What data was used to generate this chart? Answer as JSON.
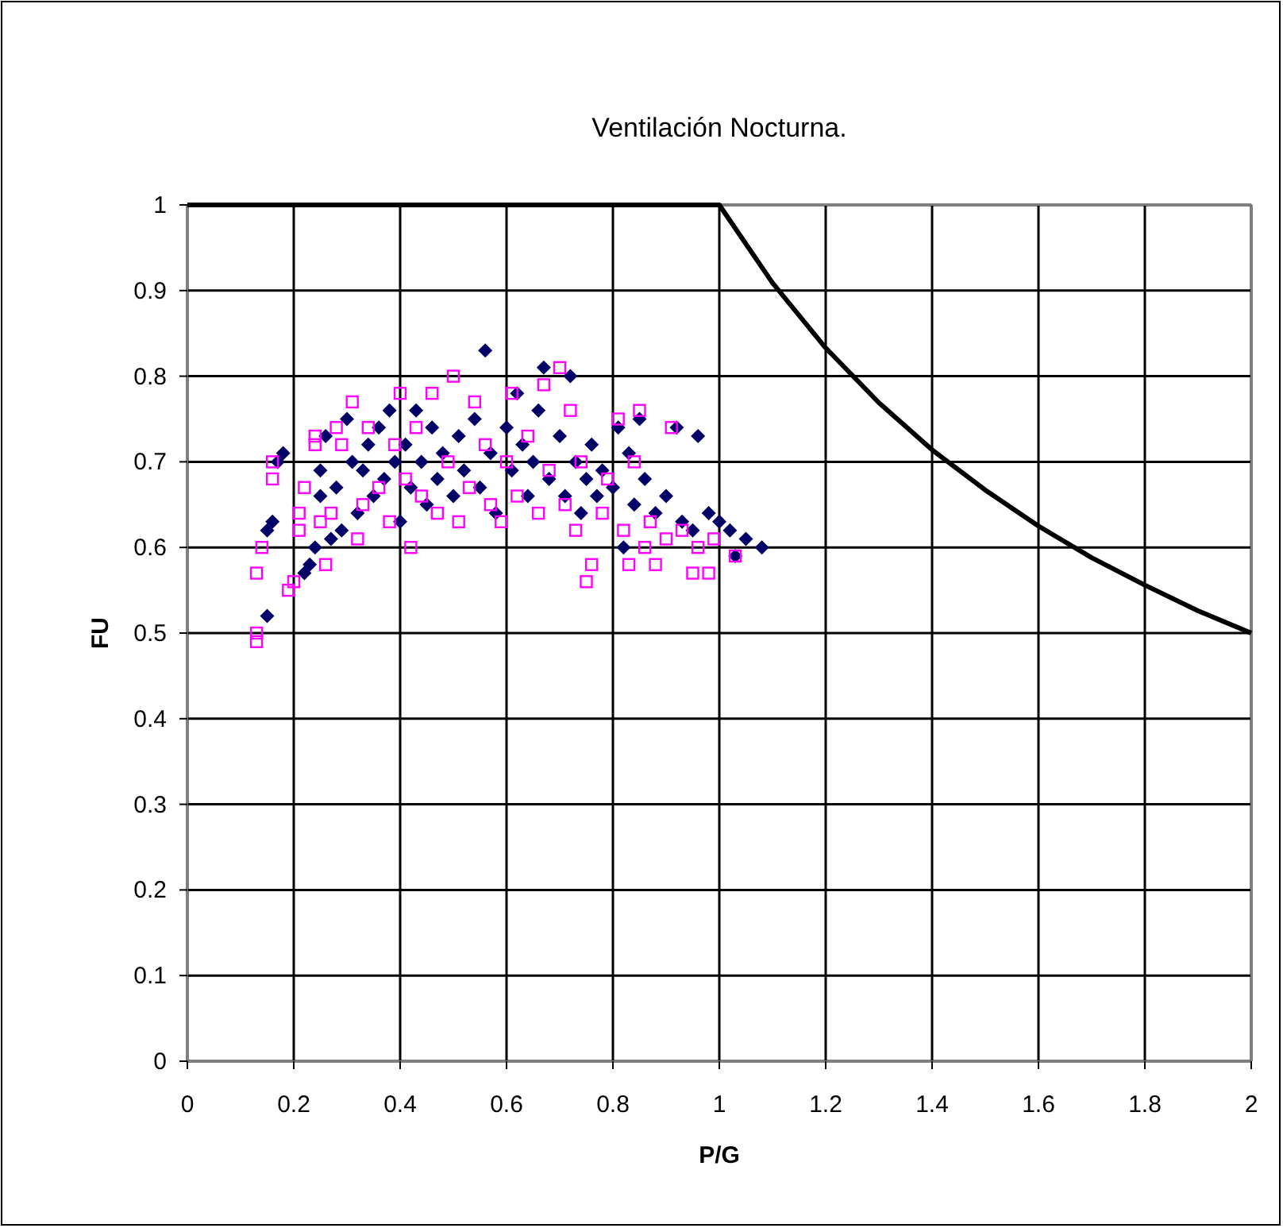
{
  "chart_data": {
    "type": "scatter",
    "title": "Ventilación Nocturna.",
    "xlabel": "P/G",
    "ylabel": "FU",
    "xlim": [
      0,
      2
    ],
    "ylim": [
      0,
      1
    ],
    "xticks": [
      0,
      0.2,
      0.4,
      0.6,
      0.8,
      1,
      1.2,
      1.4,
      1.6,
      1.8,
      2
    ],
    "yticks": [
      0,
      0.1,
      0.2,
      0.3,
      0.4,
      0.5,
      0.6,
      0.7,
      0.8,
      0.9,
      1
    ],
    "grid": true,
    "series": [
      {
        "marker": "diamond",
        "color": "#000066",
        "x": [
          0.15,
          0.15,
          0.16,
          0.17,
          0.18,
          0.22,
          0.23,
          0.24,
          0.25,
          0.25,
          0.26,
          0.27,
          0.28,
          0.29,
          0.3,
          0.31,
          0.32,
          0.33,
          0.34,
          0.35,
          0.36,
          0.37,
          0.38,
          0.39,
          0.4,
          0.41,
          0.42,
          0.43,
          0.44,
          0.45,
          0.46,
          0.47,
          0.48,
          0.5,
          0.51,
          0.52,
          0.54,
          0.55,
          0.56,
          0.57,
          0.58,
          0.6,
          0.61,
          0.62,
          0.63,
          0.64,
          0.65,
          0.66,
          0.67,
          0.68,
          0.7,
          0.71,
          0.72,
          0.73,
          0.74,
          0.75,
          0.76,
          0.77,
          0.78,
          0.8,
          0.81,
          0.82,
          0.83,
          0.84,
          0.85,
          0.86,
          0.88,
          0.9,
          0.92,
          0.93,
          0.95,
          0.96,
          0.98,
          1,
          1.02,
          1.03,
          1.05,
          1.08
        ],
        "values": [
          0.52,
          0.62,
          0.63,
          0.7,
          0.71,
          0.57,
          0.58,
          0.6,
          0.66,
          0.69,
          0.73,
          0.61,
          0.67,
          0.62,
          0.75,
          0.7,
          0.64,
          0.69,
          0.72,
          0.66,
          0.74,
          0.68,
          0.76,
          0.7,
          0.63,
          0.72,
          0.67,
          0.76,
          0.7,
          0.65,
          0.74,
          0.68,
          0.71,
          0.66,
          0.73,
          0.69,
          0.75,
          0.67,
          0.83,
          0.71,
          0.64,
          0.74,
          0.69,
          0.78,
          0.72,
          0.66,
          0.7,
          0.76,
          0.81,
          0.68,
          0.73,
          0.66,
          0.8,
          0.7,
          0.64,
          0.68,
          0.72,
          0.66,
          0.69,
          0.67,
          0.74,
          0.6,
          0.71,
          0.65,
          0.75,
          0.68,
          0.64,
          0.66,
          0.74,
          0.63,
          0.62,
          0.73,
          0.64,
          0.63,
          0.62,
          0.59,
          0.61,
          0.6
        ]
      },
      {
        "marker": "square",
        "color": "#ff00ff",
        "x": [
          0.13,
          0.13,
          0.13,
          0.14,
          0.16,
          0.16,
          0.19,
          0.2,
          0.21,
          0.21,
          0.22,
          0.24,
          0.24,
          0.25,
          0.26,
          0.27,
          0.28,
          0.29,
          0.31,
          0.32,
          0.33,
          0.34,
          0.36,
          0.38,
          0.39,
          0.4,
          0.41,
          0.42,
          0.43,
          0.44,
          0.46,
          0.47,
          0.49,
          0.5,
          0.51,
          0.53,
          0.54,
          0.56,
          0.57,
          0.59,
          0.6,
          0.61,
          0.62,
          0.64,
          0.66,
          0.67,
          0.68,
          0.7,
          0.71,
          0.72,
          0.73,
          0.74,
          0.75,
          0.76,
          0.78,
          0.79,
          0.81,
          0.82,
          0.83,
          0.84,
          0.85,
          0.86,
          0.87,
          0.88,
          0.9,
          0.91,
          0.93,
          0.95,
          0.96,
          0.98,
          0.99,
          1.03
        ],
        "values": [
          0.49,
          0.5,
          0.57,
          0.6,
          0.68,
          0.7,
          0.55,
          0.56,
          0.62,
          0.64,
          0.67,
          0.72,
          0.73,
          0.63,
          0.58,
          0.64,
          0.74,
          0.72,
          0.77,
          0.61,
          0.65,
          0.74,
          0.67,
          0.63,
          0.72,
          0.78,
          0.68,
          0.6,
          0.74,
          0.66,
          0.78,
          0.64,
          0.7,
          0.8,
          0.63,
          0.67,
          0.77,
          0.72,
          0.65,
          0.63,
          0.7,
          0.78,
          0.66,
          0.73,
          0.64,
          0.79,
          0.69,
          0.81,
          0.65,
          0.76,
          0.62,
          0.7,
          0.56,
          0.58,
          0.64,
          0.68,
          0.75,
          0.62,
          0.58,
          0.7,
          0.76,
          0.6,
          0.63,
          0.58,
          0.61,
          0.74,
          0.62,
          0.57,
          0.6,
          0.57,
          0.61,
          0.59
        ]
      },
      {
        "type": "line",
        "marker": "none",
        "line_style": "solid",
        "color": "#000000",
        "x": [
          0,
          1,
          1.1,
          1.2,
          1.3,
          1.4,
          1.5,
          1.6,
          1.7,
          1.8,
          1.9,
          2
        ],
        "values": [
          1,
          1,
          0.909,
          0.833,
          0.769,
          0.714,
          0.667,
          0.625,
          0.588,
          0.556,
          0.526,
          0.5
        ]
      }
    ]
  }
}
